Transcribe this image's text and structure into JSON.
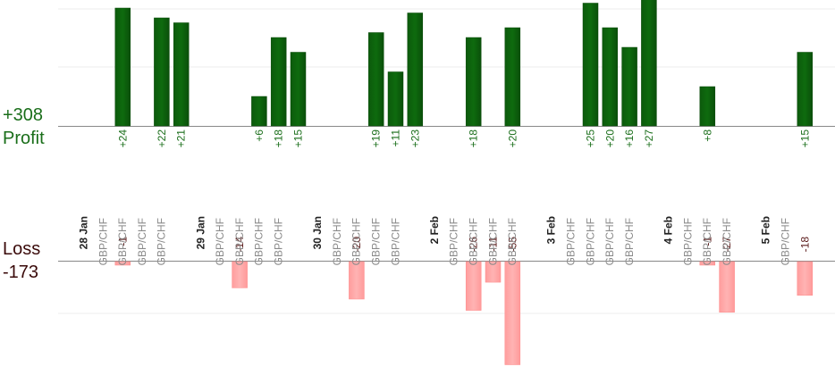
{
  "summary": {
    "profit_total": "+308",
    "profit_label": "Profit",
    "loss_label": "Loss",
    "loss_total": "-173"
  },
  "colors": {
    "profit_bar": "#0e6b0e",
    "profit_text": "#1a6e1a",
    "loss_bar": "#ffb3b3",
    "loss_text": "#5a1a1a",
    "pair_text": "#8a8a8a",
    "date_text": "#222222",
    "grid": "#eeeeee",
    "axis": "#888888"
  },
  "chart_data": {
    "type": "bar",
    "pair": "GBP/CHF",
    "profit_ylim": [
      0,
      30
    ],
    "loss_ylim": [
      0,
      55
    ],
    "slots": [
      {
        "date": "28 Jan"
      },
      {
        "pair": "GBP/CHF",
        "profit": 24,
        "label": "+24",
        "loss": -1,
        "loss_label": "-1"
      },
      {
        "pair": "GBP/CHF"
      },
      {
        "pair": "GBP/CHF",
        "profit": 22,
        "label": "+22"
      },
      {
        "pair": "GBP/CHF",
        "profit": 21,
        "label": "+21"
      },
      {},
      {
        "date": "29 Jan"
      },
      {
        "pair": "GBP/CHF",
        "loss": -14,
        "loss_label": "-14"
      },
      {
        "pair": "GBP/CHF",
        "profit": 6,
        "label": "+6"
      },
      {
        "pair": "GBP/CHF",
        "profit": 18,
        "label": "+18"
      },
      {
        "pair": "GBP/CHF",
        "profit": 15,
        "label": "+15"
      },
      {},
      {
        "date": "30 Jan"
      },
      {
        "pair": "GBP/CHF",
        "loss": -20,
        "loss_label": "-20"
      },
      {
        "pair": "GBP/CHF",
        "profit": 19,
        "label": "+19"
      },
      {
        "pair": "GBP/CHF",
        "profit": 11,
        "label": "+11"
      },
      {
        "pair": "GBP/CHF",
        "profit": 23,
        "label": "+23"
      },
      {},
      {
        "date": "2 Feb"
      },
      {
        "pair": "GBP/CHF",
        "profit": 18,
        "label": "+18",
        "loss": -26,
        "loss_label": "-26"
      },
      {
        "pair": "GBP/CHF",
        "loss": -11,
        "loss_label": "-11"
      },
      {
        "pair": "GBP/CHF",
        "profit": 20,
        "label": "+20",
        "loss": -55,
        "loss_label": "-55"
      },
      {
        "pair": "GBP/CHF"
      },
      {},
      {
        "date": "3 Feb"
      },
      {
        "pair": "GBP/CHF",
        "profit": 25,
        "label": "+25"
      },
      {
        "pair": "GBP/CHF",
        "profit": 20,
        "label": "+20"
      },
      {
        "pair": "GBP/CHF",
        "profit": 16,
        "label": "+16"
      },
      {
        "pair": "GBP/CHF",
        "profit": 27,
        "label": "+27"
      },
      {},
      {
        "date": "4 Feb"
      },
      {
        "pair": "GBP/CHF",
        "profit": 8,
        "label": "+8",
        "loss": -1,
        "loss_label": "-1"
      },
      {
        "pair": "GBP/CHF",
        "loss": -27,
        "loss_label": "-27"
      },
      {
        "pair": "GBP/CHF"
      },
      {},
      {
        "date": "5 Feb"
      },
      {
        "pair": "GBP/CHF",
        "profit": 15,
        "label": "+15",
        "loss": -18,
        "loss_label": "-18"
      }
    ]
  }
}
